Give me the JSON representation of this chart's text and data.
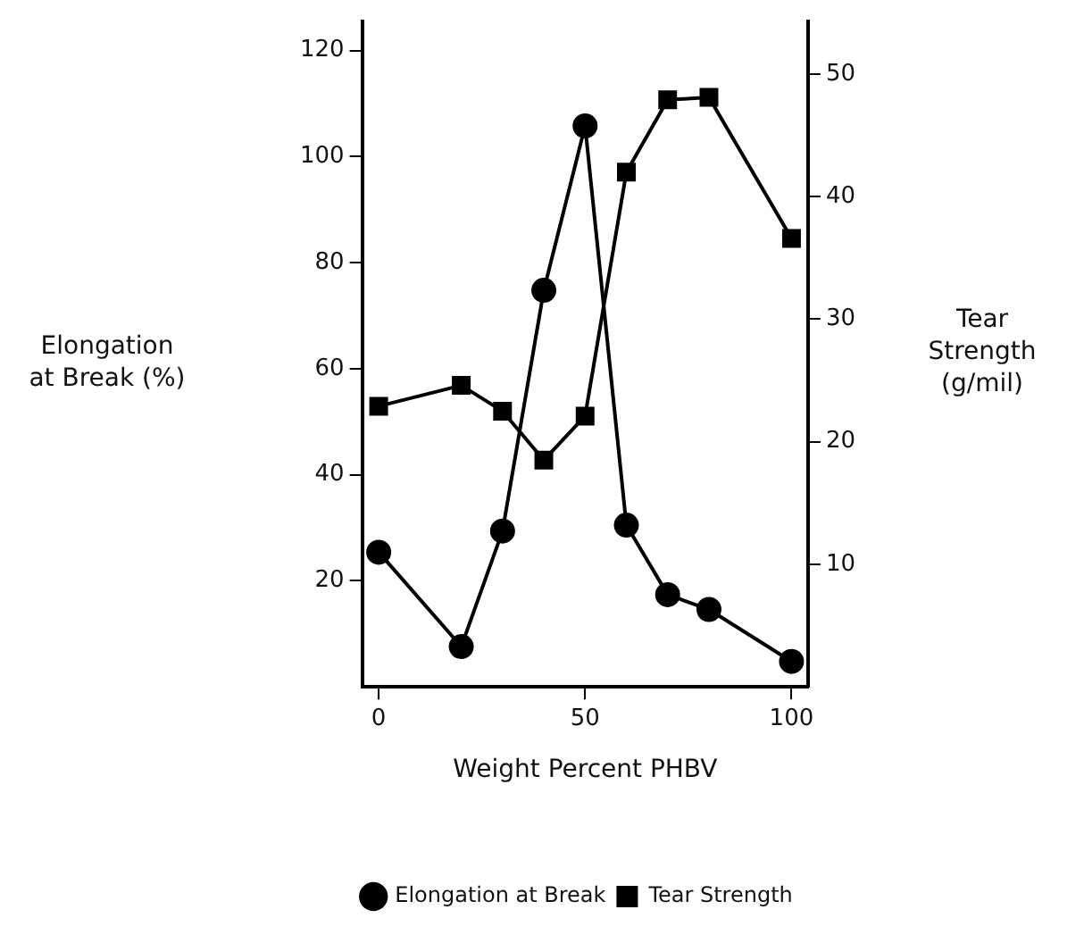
{
  "chart_data": {
    "type": "line",
    "xlabel": "Weight Percent PHBV",
    "ylabel": "Elongation\nat Break (%)",
    "y2label": "Tear\nStrength\n(g/mil)",
    "series": [
      {
        "name": "Elongation at Break",
        "color": "#000000",
        "x": [
          0,
          20,
          30,
          40,
          50,
          60,
          70,
          80,
          100
        ],
        "values": [
          25.4,
          7.6,
          29.4,
          74.8,
          105.8,
          30.5,
          17.4,
          14.6,
          4.8
        ],
        "marker": "circle"
      },
      {
        "name": "Tear Strength",
        "color": "#000000",
        "x": [
          0,
          20,
          30,
          40,
          50,
          60,
          70,
          80,
          100
        ],
        "values": [
          22.9,
          24.6,
          22.5,
          18.5,
          22.1,
          42.0,
          47.9,
          48.1,
          36.6
        ],
        "marker": "square",
        "axis": "y2"
      }
    ],
    "xlim": [
      -4,
      104
    ],
    "xticks": [
      0,
      50,
      100
    ],
    "ylim": [
      0,
      125.5
    ],
    "yticks": [
      20,
      40,
      60,
      80,
      100,
      120
    ],
    "y2lim": [
      0,
      54.3
    ],
    "y2ticks": [
      10,
      20,
      30,
      40,
      50
    ],
    "grid": false,
    "legend": "bottom",
    "line_style": "solid"
  }
}
